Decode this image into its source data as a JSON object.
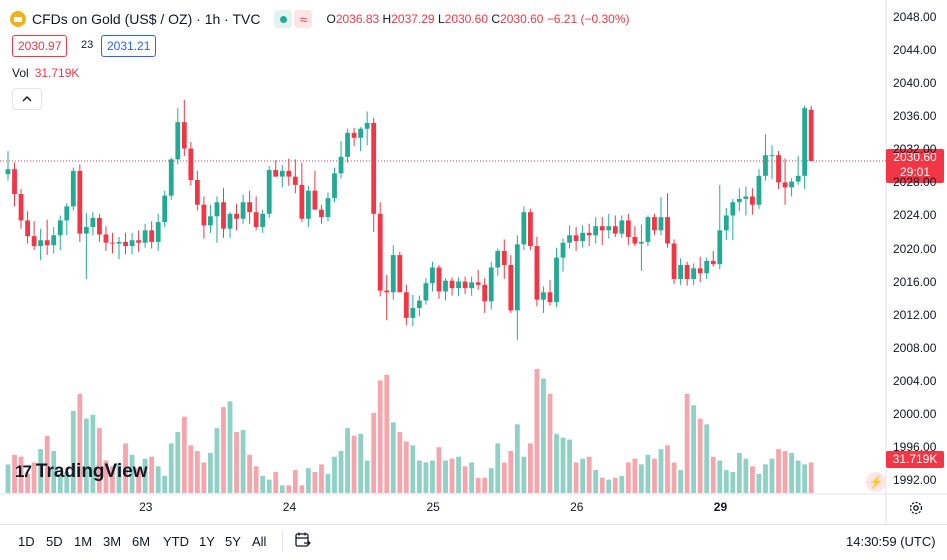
{
  "header": {
    "symbol": "CFDs on Gold (US$ / OZ) · 1h · TVC",
    "o_label": "O",
    "o": "2036.83",
    "h_label": "H",
    "h": "2037.29",
    "l_label": "L",
    "l": "2030.60",
    "c_label": "C",
    "c": "2030.60",
    "change": "−6.21 (−0.30%)",
    "sell_price": "2030.97",
    "spread": "23",
    "buy_price": "2031.21",
    "vol_label": "Vol",
    "vol_value": "31.719K"
  },
  "price_tag": {
    "price": "2030.60",
    "countdown": "29:01"
  },
  "vol_tag": "31.719K",
  "brand": "TradingView",
  "ranges": [
    "1D",
    "5D",
    "1M",
    "3M",
    "6M",
    "YTD",
    "1Y",
    "5Y",
    "All"
  ],
  "clock": "14:30:59 (UTC)",
  "colors": {
    "up": "#22ab94",
    "down": "#f23645",
    "up_vol": "#8fd1c4",
    "down_vol": "#f5a6ad"
  },
  "icons": [
    "collapse-icon",
    "calendar-range-icon",
    "settings-icon",
    "lightning-icon"
  ],
  "chart_data": {
    "type": "candlestick",
    "interval": "1h",
    "y_ticks": [
      "2048.00",
      "2044.00",
      "2040.00",
      "2036.00",
      "2032.00",
      "2028.00",
      "2024.00",
      "2020.00",
      "2016.00",
      "2012.00",
      "2008.00",
      "2004.00",
      "2000.00",
      "1996.00",
      "1992.00"
    ],
    "ylim": [
      1991,
      2049
    ],
    "x_ticks": [
      {
        "label": "23",
        "index": 21
      },
      {
        "label": "24",
        "index": 43
      },
      {
        "label": "25",
        "index": 65
      },
      {
        "label": "26",
        "index": 87
      },
      {
        "label": "29",
        "index": 109
      }
    ],
    "last_price": 2030.6,
    "candles": [
      [
        2029.0,
        2031.8,
        2028.2,
        2029.6
      ],
      [
        2029.6,
        2030.4,
        2025.1,
        2026.6
      ],
      [
        2026.6,
        2027.2,
        2022.4,
        2023.4
      ],
      [
        2023.4,
        2024.5,
        2020.6,
        2021.5
      ],
      [
        2021.5,
        2023.3,
        2019.8,
        2020.3
      ],
      [
        2020.3,
        2022.4,
        2018.6,
        2021.0
      ],
      [
        2021.0,
        2023.5,
        2019.2,
        2020.4
      ],
      [
        2020.4,
        2022.6,
        2019.4,
        2021.6
      ],
      [
        2021.6,
        2024.0,
        2019.8,
        2023.4
      ],
      [
        2023.4,
        2025.5,
        2021.6,
        2025.1
      ],
      [
        2025.1,
        2029.8,
        2024.6,
        2029.4
      ],
      [
        2029.4,
        2030.2,
        2020.8,
        2021.8
      ],
      [
        2021.8,
        2024.3,
        2016.3,
        2022.6
      ],
      [
        2022.6,
        2024.4,
        2021.6,
        2023.7
      ],
      [
        2023.7,
        2024.2,
        2020.8,
        2021.7
      ],
      [
        2021.7,
        2022.7,
        2019.7,
        2020.7
      ],
      [
        2020.7,
        2021.9,
        2019.4,
        2020.6
      ],
      [
        2020.6,
        2021.4,
        2018.7,
        2020.8
      ],
      [
        2020.8,
        2021.9,
        2019.3,
        2020.3
      ],
      [
        2020.3,
        2021.9,
        2019.3,
        2021.0
      ],
      [
        2021.0,
        2022.2,
        2019.6,
        2020.7
      ],
      [
        2020.7,
        2023.0,
        2020.1,
        2022.2
      ],
      [
        2022.2,
        2023.3,
        2020.0,
        2020.8
      ],
      [
        2020.8,
        2024.2,
        2019.7,
        2023.2
      ],
      [
        2023.2,
        2027.0,
        2022.6,
        2026.4
      ],
      [
        2026.4,
        2031.0,
        2025.9,
        2030.8
      ],
      [
        2030.8,
        2037.0,
        2030.2,
        2035.3
      ],
      [
        2035.3,
        2038.0,
        2031.2,
        2032.1
      ],
      [
        2032.1,
        2032.9,
        2027.6,
        2028.3
      ],
      [
        2028.3,
        2029.4,
        2024.6,
        2025.3
      ],
      [
        2025.3,
        2026.3,
        2021.2,
        2022.8
      ],
      [
        2022.8,
        2025.3,
        2021.9,
        2023.9
      ],
      [
        2023.9,
        2026.3,
        2020.7,
        2025.6
      ],
      [
        2025.6,
        2027.3,
        2021.3,
        2022.4
      ],
      [
        2022.4,
        2024.4,
        2021.3,
        2024.2
      ],
      [
        2024.2,
        2025.4,
        2022.2,
        2023.6
      ],
      [
        2023.6,
        2026.5,
        2023.0,
        2025.6
      ],
      [
        2025.6,
        2027.0,
        2023.0,
        2024.4
      ],
      [
        2024.4,
        2026.3,
        2022.2,
        2022.6
      ],
      [
        2022.6,
        2024.7,
        2021.9,
        2024.2
      ],
      [
        2024.2,
        2030.0,
        2023.7,
        2029.5
      ],
      [
        2029.5,
        2030.7,
        2028.7,
        2028.7
      ],
      [
        2028.7,
        2030.1,
        2027.4,
        2029.4
      ],
      [
        2029.4,
        2030.9,
        2027.6,
        2028.7
      ],
      [
        2028.7,
        2030.8,
        2026.7,
        2027.7
      ],
      [
        2027.7,
        2030.4,
        2023.2,
        2023.6
      ],
      [
        2023.6,
        2027.6,
        2022.6,
        2027.0
      ],
      [
        2027.0,
        2029.4,
        2025.2,
        2024.7
      ],
      [
        2024.7,
        2025.3,
        2023.0,
        2023.8
      ],
      [
        2023.8,
        2026.8,
        2023.3,
        2026.1
      ],
      [
        2026.1,
        2029.8,
        2025.6,
        2029.1
      ],
      [
        2029.1,
        2033.0,
        2028.5,
        2031.1
      ],
      [
        2031.1,
        2034.5,
        2030.4,
        2034.0
      ],
      [
        2034.0,
        2034.6,
        2032.4,
        2033.4
      ],
      [
        2033.4,
        2034.7,
        2031.8,
        2034.5
      ],
      [
        2034.5,
        2036.6,
        2032.5,
        2035.2
      ],
      [
        2035.2,
        2035.8,
        2022.0,
        2024.2
      ],
      [
        2024.2,
        2025.6,
        2014.2,
        2014.9
      ],
      [
        2014.9,
        2016.8,
        2011.3,
        2014.7
      ],
      [
        2014.7,
        2020.4,
        2013.8,
        2019.2
      ],
      [
        2019.2,
        2019.6,
        2014.7,
        2014.7
      ],
      [
        2014.7,
        2015.6,
        2010.7,
        2011.6
      ],
      [
        2011.6,
        2014.4,
        2010.6,
        2012.8
      ],
      [
        2012.8,
        2014.3,
        2011.8,
        2013.7
      ],
      [
        2013.7,
        2016.4,
        2013.2,
        2015.8
      ],
      [
        2015.8,
        2018.4,
        2014.8,
        2017.7
      ],
      [
        2017.7,
        2018.0,
        2013.9,
        2014.8
      ],
      [
        2014.8,
        2016.4,
        2013.7,
        2016.1
      ],
      [
        2016.1,
        2016.5,
        2014.3,
        2015.2
      ],
      [
        2015.2,
        2016.5,
        2014.2,
        2016.0
      ],
      [
        2016.0,
        2016.6,
        2014.5,
        2015.2
      ],
      [
        2015.2,
        2016.6,
        2014.3,
        2015.9
      ],
      [
        2015.9,
        2017.4,
        2015.0,
        2015.6
      ],
      [
        2015.6,
        2016.4,
        2012.2,
        2013.6
      ],
      [
        2013.6,
        2018.4,
        2012.6,
        2017.7
      ],
      [
        2017.7,
        2020.0,
        2016.7,
        2019.7
      ],
      [
        2019.7,
        2021.1,
        2016.3,
        2018.0
      ],
      [
        2018.0,
        2019.2,
        2012.2,
        2012.5
      ],
      [
        2012.5,
        2021.6,
        2008.9,
        2020.5
      ],
      [
        2020.5,
        2025.1,
        2019.8,
        2024.4
      ],
      [
        2024.4,
        2024.8,
        2019.8,
        2020.3
      ],
      [
        2020.3,
        2021.4,
        2013.0,
        2013.8
      ],
      [
        2013.8,
        2015.4,
        2012.2,
        2014.7
      ],
      [
        2014.7,
        2016.2,
        2013.1,
        2013.5
      ],
      [
        2013.5,
        2020.1,
        2012.9,
        2018.9
      ],
      [
        2018.9,
        2021.2,
        2017.2,
        2020.7
      ],
      [
        2020.7,
        2022.8,
        2020.0,
        2021.6
      ],
      [
        2021.6,
        2022.6,
        2019.7,
        2020.9
      ],
      [
        2020.9,
        2022.8,
        2020.1,
        2021.9
      ],
      [
        2021.9,
        2023.0,
        2020.3,
        2021.6
      ],
      [
        2021.6,
        2023.8,
        2020.6,
        2022.7
      ],
      [
        2022.7,
        2023.8,
        2020.4,
        2022.2
      ],
      [
        2022.2,
        2024.2,
        2021.2,
        2022.7
      ],
      [
        2022.7,
        2024.0,
        2021.4,
        2021.8
      ],
      [
        2021.8,
        2024.0,
        2021.3,
        2023.4
      ],
      [
        2023.4,
        2024.2,
        2020.4,
        2021.4
      ],
      [
        2021.4,
        2022.7,
        2020.3,
        2020.6
      ],
      [
        2020.6,
        2022.9,
        2017.3,
        2020.8
      ],
      [
        2020.8,
        2024.0,
        2020.3,
        2023.8
      ],
      [
        2023.8,
        2024.2,
        2021.6,
        2022.2
      ],
      [
        2022.2,
        2026.2,
        2021.6,
        2023.8
      ],
      [
        2023.8,
        2026.7,
        2020.1,
        2020.6
      ],
      [
        2020.6,
        2021.1,
        2015.7,
        2016.3
      ],
      [
        2016.3,
        2018.8,
        2015.6,
        2018.0
      ],
      [
        2018.0,
        2018.4,
        2015.5,
        2016.3
      ],
      [
        2016.3,
        2018.2,
        2015.6,
        2017.6
      ],
      [
        2017.6,
        2019.0,
        2015.9,
        2017.0
      ],
      [
        2017.0,
        2018.9,
        2016.3,
        2018.5
      ],
      [
        2018.5,
        2019.7,
        2017.8,
        2018.1
      ],
      [
        2018.1,
        2027.7,
        2017.5,
        2022.2
      ],
      [
        2022.2,
        2024.9,
        2021.0,
        2024.0
      ],
      [
        2024.0,
        2026.0,
        2021.0,
        2025.6
      ],
      [
        2025.6,
        2027.3,
        2024.5,
        2026.0
      ],
      [
        2026.0,
        2027.5,
        2024.0,
        2026.3
      ],
      [
        2026.3,
        2027.3,
        2024.1,
        2025.3
      ],
      [
        2025.3,
        2029.6,
        2024.8,
        2028.8
      ],
      [
        2028.8,
        2033.8,
        2028.2,
        2031.3
      ],
      [
        2031.3,
        2032.5,
        2028.4,
        2031.3
      ],
      [
        2031.3,
        2031.8,
        2027.2,
        2028.0
      ],
      [
        2028.0,
        2030.9,
        2025.3,
        2027.4
      ],
      [
        2027.4,
        2028.5,
        2026.3,
        2028.1
      ],
      [
        2028.1,
        2031.2,
        2027.7,
        2028.8
      ],
      [
        2028.8,
        2037.3,
        2027.2,
        2037.0
      ],
      [
        2036.8,
        2037.3,
        2030.6,
        2030.6
      ]
    ],
    "volume": [
      1.5,
      2.0,
      1.9,
      1.0,
      1.6,
      2.3,
      3.0,
      2.2,
      1.0,
      1.1,
      4.3,
      5.2,
      3.9,
      4.1,
      3.4,
      1.7,
      1.4,
      1.5,
      2.6,
      2.0,
      1.3,
      1.8,
      1.9,
      1.4,
      0.9,
      2.6,
      3.2,
      4.0,
      2.5,
      2.2,
      1.6,
      2.1,
      3.4,
      4.5,
      4.8,
      3.2,
      3.3,
      2.0,
      1.4,
      0.9,
      0.7,
      1.1,
      0.4,
      0.4,
      1.2,
      0.4,
      1.3,
      1.1,
      1.5,
      1.0,
      1.9,
      2.2,
      3.4,
      3.0,
      3.1,
      1.7,
      4.2,
      5.9,
      6.2,
      3.7,
      3.2,
      2.7,
      2.5,
      1.7,
      1.6,
      1.7,
      2.4,
      1.7,
      1.8,
      1.9,
      1.4,
      1.6,
      0.8,
      0.8,
      1.3,
      2.6,
      1.6,
      2.2,
      3.6,
      1.9,
      2.6,
      6.5,
      6.0,
      5.2,
      3.1,
      2.9,
      2.8,
      1.6,
      1.8,
      1.9,
      1.2,
      0.8,
      0.7,
      0.8,
      0.9,
      1.6,
      1.8,
      1.5,
      2.0,
      1.8,
      2.3,
      2.5,
      1.6,
      1.2,
      5.2,
      4.6,
      3.9,
      3.6,
      1.9,
      1.7,
      1.2,
      1.1,
      2.1,
      1.8,
      1.4,
      1.0,
      1.5,
      1.8,
      2.3,
      2.2,
      2.1,
      1.7,
      1.5,
      1.6,
      2.0,
      3.2
    ]
  }
}
